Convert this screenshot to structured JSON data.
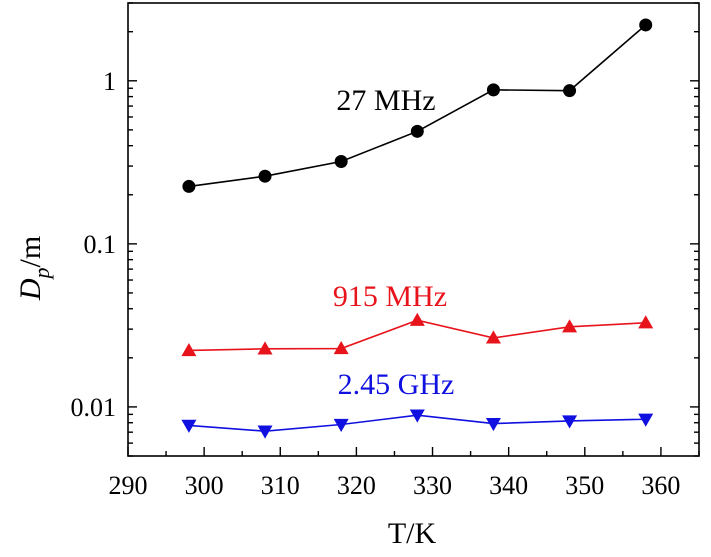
{
  "chart_data": {
    "type": "line",
    "title": "",
    "xlabel": "T/K",
    "ylabel": {
      "main": "D",
      "sub": "p",
      "unit": "/m"
    },
    "xscale": "linear",
    "yscale": "log",
    "xlim": [
      290,
      365
    ],
    "ylim": [
      0.005,
      3.0
    ],
    "x_ticks": [
      290,
      300,
      310,
      320,
      330,
      340,
      350,
      360
    ],
    "x_tick_labels": [
      "290",
      "300",
      "310",
      "320",
      "330",
      "340",
      "350",
      "360"
    ],
    "y_ticks": [
      0.01,
      0.1,
      1
    ],
    "y_tick_labels": [
      "0.01",
      "0.1",
      "1"
    ],
    "grid": false,
    "legend": "none",
    "series": [
      {
        "name": "27 MHz",
        "label": "27 MHz",
        "color": "#000000",
        "marker": "circle",
        "x": [
          298,
          308,
          318,
          328,
          338,
          348,
          358
        ],
        "y": [
          0.225,
          0.26,
          0.32,
          0.49,
          0.88,
          0.87,
          2.2
        ]
      },
      {
        "name": "915 MHz",
        "label": "915 MHz",
        "color": "#e8141c",
        "marker": "triangle-up",
        "x": [
          298,
          308,
          318,
          328,
          338,
          348,
          358
        ],
        "y": [
          0.0222,
          0.0227,
          0.0228,
          0.034,
          0.0265,
          0.031,
          0.0328
        ]
      },
      {
        "name": "2.45 GHz",
        "label": "2.45 GHz",
        "color": "#1010e0",
        "marker": "triangle-down",
        "x": [
          298,
          308,
          318,
          328,
          338,
          348,
          358
        ],
        "y": [
          0.0077,
          0.0071,
          0.0078,
          0.0089,
          0.0079,
          0.0082,
          0.0084
        ]
      }
    ]
  }
}
